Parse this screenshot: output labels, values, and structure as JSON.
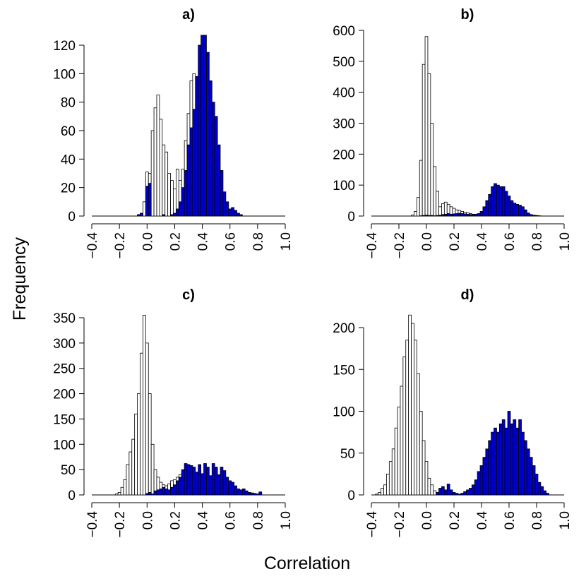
{
  "figure": {
    "ylabel": "Frequency",
    "xlabel": "Correlation"
  },
  "colors": {
    "null_fill": "#ffffff",
    "observed_fill": "#0000cc",
    "stroke": "#000000"
  },
  "chart_data": [
    {
      "type": "bar",
      "title": "a)",
      "bin_width": 0.02,
      "xlim": [
        -0.4,
        1.0
      ],
      "ylim": [
        0,
        130
      ],
      "x_ticks": [
        "-0.4",
        "-0.2",
        "0.0",
        "0.2",
        "0.4",
        "0.6",
        "0.8",
        "1.0"
      ],
      "y_ticks": [
        "0",
        "20",
        "40",
        "60",
        "80",
        "100",
        "120"
      ],
      "series": [
        {
          "style": "white",
          "x": [
            -0.06,
            -0.04,
            -0.02,
            0,
            0.02,
            0.04,
            0.06,
            0.08,
            0.1,
            0.12,
            0.14,
            0.16,
            0.18,
            0.2,
            0.22,
            0.24,
            0.26,
            0.28,
            0.3,
            0.32,
            0.34
          ],
          "values": [
            1,
            2,
            10,
            31,
            30,
            60,
            76,
            85,
            68,
            50,
            45,
            30,
            25,
            19,
            33,
            25,
            33,
            53,
            72,
            95,
            100
          ]
        },
        {
          "style": "blue",
          "x": [
            -0.06,
            -0.04,
            -0.02,
            0,
            0.02,
            0.04,
            0.06,
            0.08,
            0.1,
            0.12,
            0.14,
            0.16,
            0.18,
            0.2,
            0.22,
            0.24,
            0.26,
            0.28,
            0.3,
            0.32,
            0.34,
            0.36,
            0.38,
            0.4,
            0.42,
            0.44,
            0.46,
            0.48,
            0.5,
            0.52,
            0.54,
            0.56,
            0.58,
            0.6,
            0.62,
            0.64,
            0.66,
            0.68
          ],
          "values": [
            1,
            2,
            0,
            21,
            23,
            0,
            0,
            0,
            0,
            1,
            0,
            0,
            1,
            2,
            5,
            10,
            20,
            32,
            50,
            62,
            75,
            98,
            120,
            127,
            127,
            115,
            95,
            80,
            70,
            50,
            32,
            17,
            10,
            5,
            6,
            4,
            2,
            1
          ]
        }
      ]
    },
    {
      "type": "bar",
      "title": "b)",
      "bin_width": 0.02,
      "xlim": [
        -0.4,
        1.0
      ],
      "ylim": [
        0,
        600
      ],
      "x_ticks": [
        "-0.4",
        "-0.2",
        "0.0",
        "0.2",
        "0.4",
        "0.6",
        "0.8",
        "1.0"
      ],
      "y_ticks": [
        "0",
        "100",
        "200",
        "300",
        "400",
        "500",
        "600"
      ],
      "series": [
        {
          "style": "white",
          "x": [
            -0.1,
            -0.08,
            -0.06,
            -0.04,
            -0.02,
            0,
            0.02,
            0.04,
            0.06,
            0.08,
            0.1,
            0.12,
            0.14,
            0.16,
            0.18,
            0.2,
            0.22,
            0.24,
            0.26,
            0.28,
            0.3,
            0.32,
            0.34
          ],
          "values": [
            3,
            15,
            60,
            180,
            490,
            580,
            460,
            300,
            160,
            80,
            30,
            40,
            45,
            38,
            30,
            25,
            20,
            18,
            15,
            12,
            10,
            8,
            6
          ]
        },
        {
          "style": "blue",
          "x": [
            -0.04,
            -0.02,
            0,
            0.02,
            0.04,
            0.06,
            0.08,
            0.1,
            0.12,
            0.14,
            0.16,
            0.18,
            0.2,
            0.22,
            0.24,
            0.26,
            0.28,
            0.3,
            0.32,
            0.34,
            0.36,
            0.38,
            0.4,
            0.42,
            0.44,
            0.46,
            0.48,
            0.5,
            0.52,
            0.54,
            0.56,
            0.58,
            0.6,
            0.62,
            0.64,
            0.66,
            0.68,
            0.7,
            0.72,
            0.74,
            0.76,
            0.78,
            0.8,
            0.82
          ],
          "values": [
            1,
            2,
            3,
            2,
            2,
            1,
            2,
            3,
            5,
            6,
            8,
            6,
            7,
            8,
            9,
            8,
            7,
            6,
            5,
            5,
            6,
            8,
            15,
            30,
            50,
            70,
            95,
            105,
            100,
            95,
            95,
            80,
            65,
            50,
            42,
            38,
            35,
            30,
            20,
            10,
            5,
            3,
            2,
            1
          ]
        }
      ]
    },
    {
      "type": "bar",
      "title": "c)",
      "bin_width": 0.02,
      "xlim": [
        -0.4,
        1.0
      ],
      "ylim": [
        0,
        370
      ],
      "x_ticks": [
        "-0.4",
        "-0.2",
        "0.0",
        "0.2",
        "0.4",
        "0.6",
        "0.8",
        "1.0"
      ],
      "y_ticks": [
        "0",
        "50",
        "100",
        "150",
        "200",
        "250",
        "300",
        "350"
      ],
      "series": [
        {
          "style": "white",
          "x": [
            -0.22,
            -0.2,
            -0.18,
            -0.16,
            -0.14,
            -0.12,
            -0.1,
            -0.08,
            -0.06,
            -0.04,
            -0.02,
            0,
            0.02,
            0.04,
            0.06,
            0.08,
            0.1,
            0.12,
            0.14,
            0.16,
            0.18,
            0.2,
            0.22,
            0.24,
            0.26,
            0.28
          ],
          "values": [
            2,
            5,
            15,
            30,
            60,
            85,
            110,
            160,
            200,
            280,
            355,
            300,
            200,
            100,
            50,
            35,
            25,
            20,
            18,
            22,
            28,
            30,
            35,
            40,
            45,
            50
          ]
        },
        {
          "style": "blue",
          "x": [
            0,
            0.02,
            0.04,
            0.06,
            0.08,
            0.1,
            0.12,
            0.14,
            0.16,
            0.18,
            0.2,
            0.22,
            0.24,
            0.26,
            0.28,
            0.3,
            0.32,
            0.34,
            0.36,
            0.38,
            0.4,
            0.42,
            0.44,
            0.46,
            0.48,
            0.5,
            0.52,
            0.54,
            0.56,
            0.58,
            0.6,
            0.62,
            0.64,
            0.66,
            0.68,
            0.7,
            0.72,
            0.74,
            0.76,
            0.78,
            0.8,
            0.82
          ],
          "values": [
            3,
            5,
            2,
            8,
            10,
            12,
            15,
            12,
            10,
            15,
            20,
            28,
            35,
            50,
            62,
            60,
            58,
            55,
            45,
            60,
            42,
            62,
            55,
            38,
            62,
            55,
            40,
            55,
            48,
            35,
            28,
            25,
            18,
            12,
            10,
            12,
            8,
            5,
            4,
            3,
            2,
            6
          ]
        }
      ]
    },
    {
      "type": "bar",
      "title": "d)",
      "bin_width": 0.02,
      "xlim": [
        -0.4,
        1.0
      ],
      "ylim": [
        0,
        220
      ],
      "x_ticks": [
        "-0.4",
        "-0.2",
        "0.0",
        "0.2",
        "0.4",
        "0.6",
        "0.8",
        "1.0"
      ],
      "y_ticks": [
        "0",
        "50",
        "100",
        "150",
        "200"
      ],
      "series": [
        {
          "style": "white",
          "x": [
            -0.36,
            -0.34,
            -0.32,
            -0.3,
            -0.28,
            -0.26,
            -0.24,
            -0.22,
            -0.2,
            -0.18,
            -0.16,
            -0.14,
            -0.12,
            -0.1,
            -0.08,
            -0.06,
            -0.04,
            -0.02,
            0,
            0.02,
            0.04,
            0.06
          ],
          "values": [
            1,
            3,
            8,
            12,
            25,
            40,
            55,
            80,
            105,
            130,
            165,
            185,
            215,
            205,
            185,
            145,
            100,
            65,
            40,
            20,
            12,
            5
          ]
        },
        {
          "style": "blue",
          "x": [
            0.08,
            0.1,
            0.12,
            0.14,
            0.16,
            0.18,
            0.2,
            0.22,
            0.24,
            0.26,
            0.28,
            0.3,
            0.32,
            0.34,
            0.36,
            0.38,
            0.4,
            0.42,
            0.44,
            0.46,
            0.48,
            0.5,
            0.52,
            0.54,
            0.56,
            0.58,
            0.6,
            0.62,
            0.64,
            0.66,
            0.68,
            0.7,
            0.72,
            0.74,
            0.76,
            0.78,
            0.8,
            0.82,
            0.84,
            0.86,
            0.88
          ],
          "values": [
            3,
            8,
            10,
            6,
            13,
            6,
            3,
            2,
            1,
            2,
            4,
            6,
            8,
            12,
            18,
            28,
            35,
            45,
            55,
            65,
            75,
            80,
            75,
            85,
            90,
            80,
            100,
            85,
            90,
            80,
            90,
            75,
            65,
            55,
            45,
            35,
            25,
            15,
            10,
            5,
            2
          ]
        }
      ]
    }
  ]
}
